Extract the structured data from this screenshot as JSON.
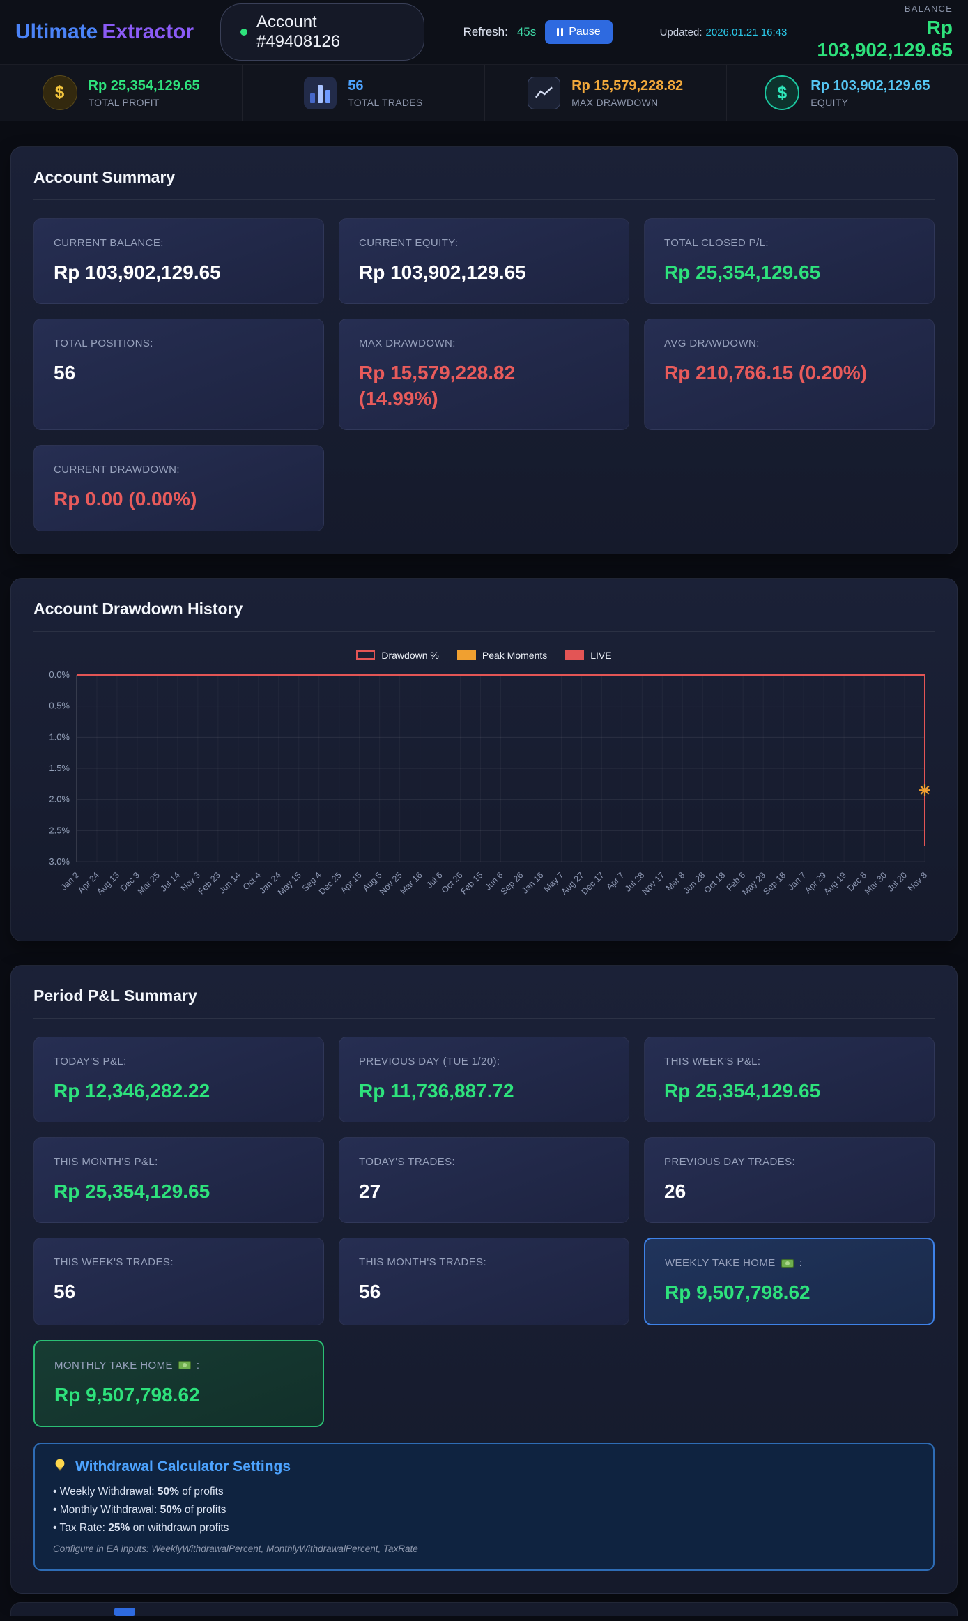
{
  "colors": {
    "green": "#2ee27c",
    "red": "#e85b5b",
    "orange": "#f2a93b",
    "blue": "#4da3ff",
    "lightblue": "#56c7f5",
    "white": "#ffffff"
  },
  "header": {
    "brand_first": "Ultimate",
    "brand_second": "Extractor",
    "account_label": "Account #49408126",
    "refresh_label": "Refresh:",
    "refresh_value": "45s",
    "pause_label": "Pause",
    "updated_label": "Updated:",
    "updated_value": "2026.01.21 16:43",
    "balance_label": "BALANCE",
    "balance_value": "Rp 103,902,129.65"
  },
  "stats": [
    {
      "icon": "money-bag-icon",
      "value": "Rp 25,354,129.65",
      "label": "TOTAL PROFIT",
      "color": "green"
    },
    {
      "icon": "bar-chart-icon",
      "value": "56",
      "label": "TOTAL TRADES",
      "color": "blue"
    },
    {
      "icon": "line-chart-icon",
      "value": "Rp 15,579,228.82",
      "label": "MAX DRAWDOWN",
      "color": "orange"
    },
    {
      "icon": "dollar-icon",
      "value": "Rp 103,902,129.65",
      "label": "EQUITY",
      "color": "lightblue"
    }
  ],
  "account_summary": {
    "title": "Account Summary",
    "tiles": [
      {
        "label": "CURRENT BALANCE:",
        "value": "Rp 103,902,129.65",
        "color": "white"
      },
      {
        "label": "CURRENT EQUITY:",
        "value": "Rp 103,902,129.65",
        "color": "white"
      },
      {
        "label": "TOTAL CLOSED P/L:",
        "value": "Rp 25,354,129.65",
        "color": "green"
      },
      {
        "label": "TOTAL POSITIONS:",
        "value": "56",
        "color": "white"
      },
      {
        "label": "MAX DRAWDOWN:",
        "value": "Rp 15,579,228.82 (14.99%)",
        "color": "red",
        "narrow": true
      },
      {
        "label": "AVG DRAWDOWN:",
        "value": "Rp 210,766.15 (0.20%)",
        "color": "red"
      },
      {
        "label": "CURRENT DRAWDOWN:",
        "value": "Rp 0.00 (0.00%)",
        "color": "red"
      }
    ]
  },
  "drawdown_section": {
    "title": "Account Drawdown History"
  },
  "chart_data": {
    "type": "line",
    "title": "Account Drawdown History",
    "legend": [
      {
        "label": "Drawdown %",
        "swatch": "hollow",
        "color": "#e35555"
      },
      {
        "label": "Peak Moments",
        "swatch": "solid",
        "color": "#f0a030"
      },
      {
        "label": "LIVE",
        "swatch": "solid",
        "color": "#e35555"
      }
    ],
    "y_ticks": [
      "0.0%",
      "0.5%",
      "1.0%",
      "1.5%",
      "2.0%",
      "2.5%",
      "3.0%"
    ],
    "y_max": 3.0,
    "y_inverted": true,
    "grid": true,
    "categories": [
      "Jan 2",
      "Apr 24",
      "Aug 13",
      "Dec 3",
      "Mar 25",
      "Jul 14",
      "Nov 3",
      "Feb 23",
      "Jun 14",
      "Oct 4",
      "Jan 24",
      "May 15",
      "Sep 4",
      "Dec 25",
      "Apr 15",
      "Aug 5",
      "Nov 25",
      "Mar 16",
      "Jul 6",
      "Oct 26",
      "Feb 15",
      "Jun 6",
      "Sep 26",
      "Jan 16",
      "May 7",
      "Aug 27",
      "Dec 17",
      "Apr 7",
      "Jul 28",
      "Nov 17",
      "Mar 8",
      "Jun 28",
      "Oct 18",
      "Feb 6",
      "May 29",
      "Sep 18",
      "Jan 7",
      "Apr 29",
      "Aug 19",
      "Dec 8",
      "Mar 30",
      "Jul 20",
      "Nov 8"
    ],
    "series": [
      {
        "name": "Drawdown %",
        "color": "#e35555",
        "values": [
          0,
          0,
          0,
          0,
          0,
          0,
          0,
          0,
          0,
          0,
          0,
          0,
          0,
          0,
          0,
          0,
          0,
          0,
          0,
          0,
          0,
          0,
          0,
          0,
          0,
          0,
          0,
          0,
          0,
          0,
          0,
          0,
          0,
          0,
          0,
          0,
          0,
          0,
          0,
          0,
          0,
          0,
          0
        ]
      }
    ],
    "live_drop": {
      "at_category": "Nov 8",
      "from": 0,
      "to": 2.75,
      "color": "#e35555"
    },
    "peak_marker": {
      "at_category": "Nov 8",
      "value": 1.85,
      "color": "#f0a030"
    }
  },
  "period_summary": {
    "title": "Period P&L Summary",
    "tiles": [
      {
        "label": "TODAY'S P&L:",
        "value": "Rp 12,346,282.22",
        "color": "green"
      },
      {
        "label": "PREVIOUS DAY (TUE 1/20):",
        "value": "Rp 11,736,887.72",
        "color": "green"
      },
      {
        "label": "THIS WEEK'S P&L:",
        "value": "Rp 25,354,129.65",
        "color": "green"
      },
      {
        "label": "THIS MONTH'S P&L:",
        "value": "Rp 25,354,129.65",
        "color": "green"
      },
      {
        "label": "TODAY'S TRADES:",
        "value": "27",
        "color": "white"
      },
      {
        "label": "PREVIOUS DAY TRADES:",
        "value": "26",
        "color": "white"
      },
      {
        "label": "THIS WEEK'S TRADES:",
        "value": "56",
        "color": "white"
      },
      {
        "label": "THIS MONTH'S TRADES:",
        "value": "56",
        "color": "white"
      },
      {
        "label": "WEEKLY TAKE HOME",
        "money_icon": true,
        "label_suffix": ":",
        "value": "Rp 9,507,798.62",
        "color": "green",
        "variant": "highlight-blue"
      },
      {
        "label": "MONTHLY TAKE HOME",
        "money_icon": true,
        "label_suffix": ":",
        "value": "Rp 9,507,798.62",
        "color": "green",
        "variant": "highlight-green"
      }
    ],
    "withdrawal": {
      "title": "Withdrawal Calculator Settings",
      "items": [
        {
          "prefix": "Weekly Withdrawal:",
          "bold": "50%",
          "suffix": "of profits"
        },
        {
          "prefix": "Monthly Withdrawal:",
          "bold": "50%",
          "suffix": "of profits"
        },
        {
          "prefix": "Tax Rate:",
          "bold": "25%",
          "suffix": "on withdrawn profits"
        }
      ],
      "note": "Configure in EA inputs: WeeklyWithdrawalPercent, MonthlyWithdrawalPercent, TaxRate"
    }
  }
}
